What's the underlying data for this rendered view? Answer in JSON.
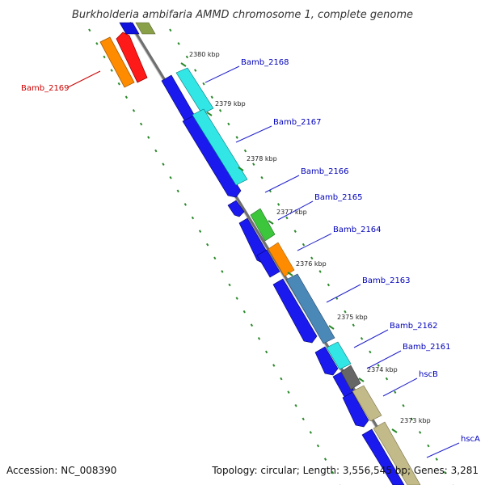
{
  "title": "Burkholderia ambifaria AMMD chromosome 1, complete genome",
  "footer": {
    "accession": "Accession: NC_008390",
    "summary": "Topology: circular; Length: 3,556,545 bp; Genes: 3,281"
  },
  "colors": {
    "backbone": "#8c8c8c",
    "tick": "#2a8a2a",
    "label_blue": "#0000bb",
    "label_red": "#cc0000",
    "leader_blue": "#2222cc",
    "leader_red": "#cc0000"
  },
  "ticks": [
    {
      "label": "2380 kbp"
    },
    {
      "label": "2379 kbp"
    },
    {
      "label": "2378 kbp"
    },
    {
      "label": "2377 kbp"
    },
    {
      "label": "2376 kbp"
    },
    {
      "label": "2375 kbp"
    },
    {
      "label": "2374 kbp"
    },
    {
      "label": "2373 kbp"
    }
  ],
  "gene_labels": [
    {
      "name": "Bamb_2169",
      "color": "#cc0000"
    },
    {
      "name": "Bamb_2168",
      "color": "#0000bb"
    },
    {
      "name": "Bamb_2167",
      "color": "#0000bb"
    },
    {
      "name": "Bamb_2166",
      "color": "#0000bb"
    },
    {
      "name": "Bamb_2165",
      "color": "#0000bb"
    },
    {
      "name": "Bamb_2164",
      "color": "#0000bb"
    },
    {
      "name": "Bamb_2163",
      "color": "#0000bb"
    },
    {
      "name": "Bamb_2162",
      "color": "#0000bb"
    },
    {
      "name": "Bamb_2161",
      "color": "#0000bb"
    },
    {
      "name": "hscB",
      "color": "#0000bb"
    },
    {
      "name": "hscA",
      "color": "#0000bb"
    }
  ]
}
